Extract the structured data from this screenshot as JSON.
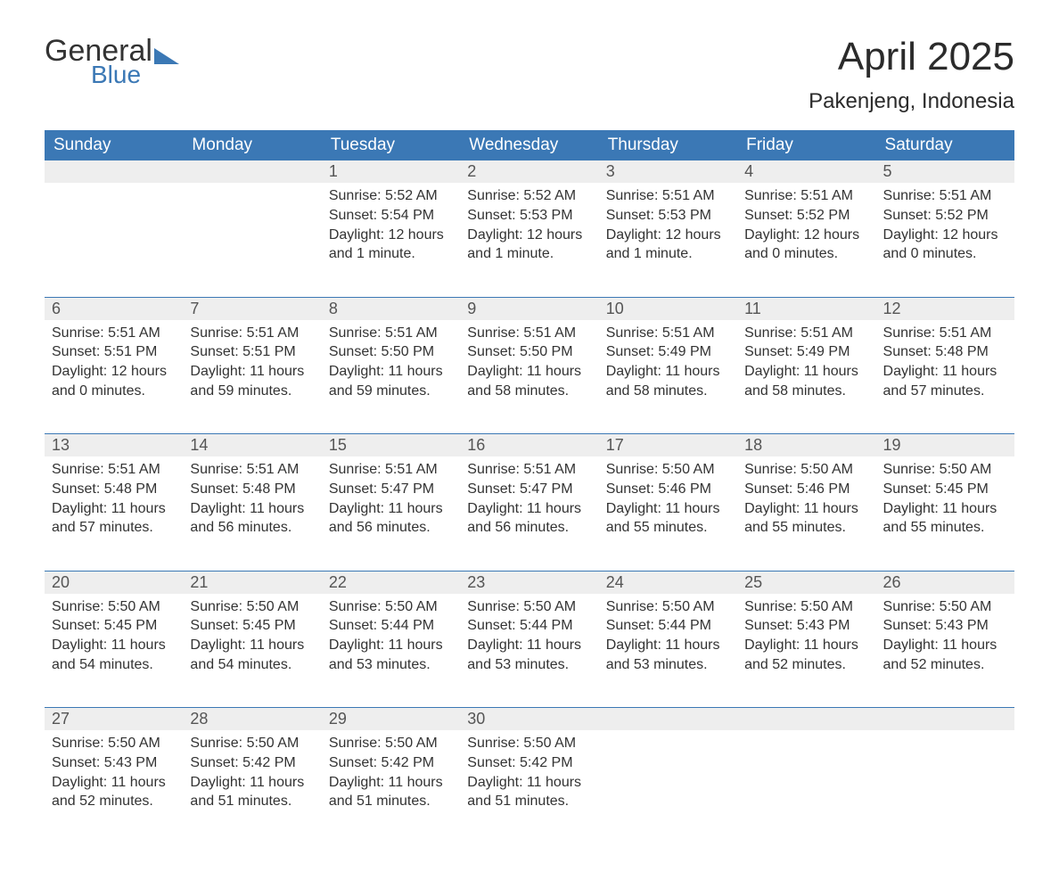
{
  "brand": {
    "name_main": "General",
    "name_sub": "Blue"
  },
  "title": "April 2025",
  "location": "Pakenjeng, Indonesia",
  "colors": {
    "header_bg": "#3b78b5",
    "header_text": "#ffffff",
    "daynum_bg": "#eeeeee",
    "week_divider": "#3b78b5",
    "body_text": "#333333",
    "brand_blue": "#3b78b5"
  },
  "weekdays": [
    "Sunday",
    "Monday",
    "Tuesday",
    "Wednesday",
    "Thursday",
    "Friday",
    "Saturday"
  ],
  "weeks": [
    [
      null,
      null,
      {
        "day": "1",
        "sunrise": "5:52 AM",
        "sunset": "5:54 PM",
        "daylight": "12 hours and 1 minute."
      },
      {
        "day": "2",
        "sunrise": "5:52 AM",
        "sunset": "5:53 PM",
        "daylight": "12 hours and 1 minute."
      },
      {
        "day": "3",
        "sunrise": "5:51 AM",
        "sunset": "5:53 PM",
        "daylight": "12 hours and 1 minute."
      },
      {
        "day": "4",
        "sunrise": "5:51 AM",
        "sunset": "5:52 PM",
        "daylight": "12 hours and 0 minutes."
      },
      {
        "day": "5",
        "sunrise": "5:51 AM",
        "sunset": "5:52 PM",
        "daylight": "12 hours and 0 minutes."
      }
    ],
    [
      {
        "day": "6",
        "sunrise": "5:51 AM",
        "sunset": "5:51 PM",
        "daylight": "12 hours and 0 minutes."
      },
      {
        "day": "7",
        "sunrise": "5:51 AM",
        "sunset": "5:51 PM",
        "daylight": "11 hours and 59 minutes."
      },
      {
        "day": "8",
        "sunrise": "5:51 AM",
        "sunset": "5:50 PM",
        "daylight": "11 hours and 59 minutes."
      },
      {
        "day": "9",
        "sunrise": "5:51 AM",
        "sunset": "5:50 PM",
        "daylight": "11 hours and 58 minutes."
      },
      {
        "day": "10",
        "sunrise": "5:51 AM",
        "sunset": "5:49 PM",
        "daylight": "11 hours and 58 minutes."
      },
      {
        "day": "11",
        "sunrise": "5:51 AM",
        "sunset": "5:49 PM",
        "daylight": "11 hours and 58 minutes."
      },
      {
        "day": "12",
        "sunrise": "5:51 AM",
        "sunset": "5:48 PM",
        "daylight": "11 hours and 57 minutes."
      }
    ],
    [
      {
        "day": "13",
        "sunrise": "5:51 AM",
        "sunset": "5:48 PM",
        "daylight": "11 hours and 57 minutes."
      },
      {
        "day": "14",
        "sunrise": "5:51 AM",
        "sunset": "5:48 PM",
        "daylight": "11 hours and 56 minutes."
      },
      {
        "day": "15",
        "sunrise": "5:51 AM",
        "sunset": "5:47 PM",
        "daylight": "11 hours and 56 minutes."
      },
      {
        "day": "16",
        "sunrise": "5:51 AM",
        "sunset": "5:47 PM",
        "daylight": "11 hours and 56 minutes."
      },
      {
        "day": "17",
        "sunrise": "5:50 AM",
        "sunset": "5:46 PM",
        "daylight": "11 hours and 55 minutes."
      },
      {
        "day": "18",
        "sunrise": "5:50 AM",
        "sunset": "5:46 PM",
        "daylight": "11 hours and 55 minutes."
      },
      {
        "day": "19",
        "sunrise": "5:50 AM",
        "sunset": "5:45 PM",
        "daylight": "11 hours and 55 minutes."
      }
    ],
    [
      {
        "day": "20",
        "sunrise": "5:50 AM",
        "sunset": "5:45 PM",
        "daylight": "11 hours and 54 minutes."
      },
      {
        "day": "21",
        "sunrise": "5:50 AM",
        "sunset": "5:45 PM",
        "daylight": "11 hours and 54 minutes."
      },
      {
        "day": "22",
        "sunrise": "5:50 AM",
        "sunset": "5:44 PM",
        "daylight": "11 hours and 53 minutes."
      },
      {
        "day": "23",
        "sunrise": "5:50 AM",
        "sunset": "5:44 PM",
        "daylight": "11 hours and 53 minutes."
      },
      {
        "day": "24",
        "sunrise": "5:50 AM",
        "sunset": "5:44 PM",
        "daylight": "11 hours and 53 minutes."
      },
      {
        "day": "25",
        "sunrise": "5:50 AM",
        "sunset": "5:43 PM",
        "daylight": "11 hours and 52 minutes."
      },
      {
        "day": "26",
        "sunrise": "5:50 AM",
        "sunset": "5:43 PM",
        "daylight": "11 hours and 52 minutes."
      }
    ],
    [
      {
        "day": "27",
        "sunrise": "5:50 AM",
        "sunset": "5:43 PM",
        "daylight": "11 hours and 52 minutes."
      },
      {
        "day": "28",
        "sunrise": "5:50 AM",
        "sunset": "5:42 PM",
        "daylight": "11 hours and 51 minutes."
      },
      {
        "day": "29",
        "sunrise": "5:50 AM",
        "sunset": "5:42 PM",
        "daylight": "11 hours and 51 minutes."
      },
      {
        "day": "30",
        "sunrise": "5:50 AM",
        "sunset": "5:42 PM",
        "daylight": "11 hours and 51 minutes."
      },
      null,
      null,
      null
    ]
  ],
  "labels": {
    "sunrise": "Sunrise:",
    "sunset": "Sunset:",
    "daylight": "Daylight:"
  }
}
